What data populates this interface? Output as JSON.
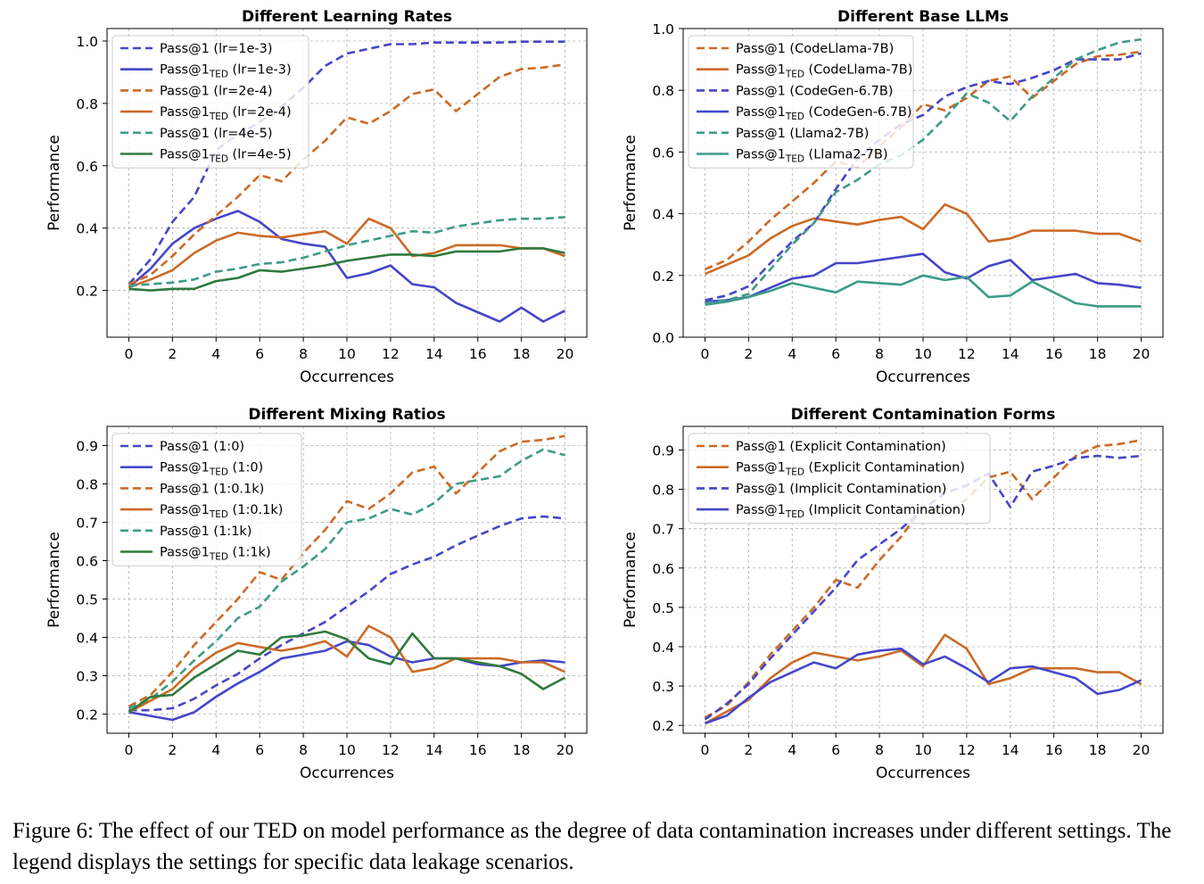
{
  "caption": "Figure 6: The effect of our TED on model performance as the degree of data contamination increases under different settings. The legend displays the settings for specific data leakage scenarios.",
  "colors": {
    "blue": "#4646c8",
    "orange": "#cc6a26",
    "teal": "#3e9b88",
    "green": "#2f7a3f"
  },
  "chart_data": [
    {
      "type": "line",
      "title": "Different Learning Rates",
      "xlabel": "Occurrences",
      "ylabel": "Performance",
      "xlim": [
        -1,
        21
      ],
      "ylim": [
        0.05,
        1.04
      ],
      "xticks": [
        0,
        2,
        4,
        6,
        8,
        10,
        12,
        14,
        16,
        18,
        20
      ],
      "yticks": [
        0.2,
        0.4,
        0.6,
        0.8,
        1.0
      ],
      "ytick_labels": [
        "0.2",
        "0.4",
        "0.6",
        "0.8",
        "1.0"
      ],
      "legend_loc": "top-left",
      "x": [
        0,
        1,
        2,
        3,
        4,
        5,
        6,
        7,
        8,
        9,
        10,
        11,
        12,
        13,
        14,
        15,
        16,
        17,
        18,
        19,
        20
      ],
      "series": [
        {
          "name": "Pass@1 (lr=1e-3)",
          "base": "Pass@1",
          "sub": "",
          "suffix": " (lr=1e-3)",
          "color": "blue",
          "dash": true,
          "values": [
            0.22,
            0.3,
            0.42,
            0.5,
            0.65,
            0.7,
            0.74,
            0.79,
            0.85,
            0.92,
            0.96,
            0.975,
            0.99,
            0.99,
            0.995,
            0.995,
            0.995,
            0.995,
            0.998,
            0.998,
            0.998
          ]
        },
        {
          "name": "Pass@1TED (lr=1e-3)",
          "base": "Pass@1",
          "sub": "TED",
          "suffix": " (lr=1e-3)",
          "color": "blue",
          "dash": false,
          "values": [
            0.21,
            0.27,
            0.35,
            0.4,
            0.43,
            0.455,
            0.42,
            0.365,
            0.35,
            0.34,
            0.24,
            0.255,
            0.28,
            0.22,
            0.21,
            0.16,
            0.13,
            0.1,
            0.145,
            0.1,
            0.135
          ]
        },
        {
          "name": "Pass@1 (lr=2e-4)",
          "base": "Pass@1",
          "sub": "",
          "suffix": " (lr=2e-4)",
          "color": "orange",
          "dash": true,
          "values": [
            0.22,
            0.25,
            0.31,
            0.38,
            0.44,
            0.5,
            0.57,
            0.55,
            0.62,
            0.68,
            0.755,
            0.735,
            0.775,
            0.83,
            0.845,
            0.775,
            0.83,
            0.885,
            0.91,
            0.915,
            0.925
          ]
        },
        {
          "name": "Pass@1TED (lr=2e-4)",
          "base": "Pass@1",
          "sub": "TED",
          "suffix": " (lr=2e-4)",
          "color": "orange",
          "dash": false,
          "values": [
            0.21,
            0.235,
            0.265,
            0.32,
            0.36,
            0.385,
            0.375,
            0.37,
            0.38,
            0.39,
            0.35,
            0.43,
            0.4,
            0.31,
            0.32,
            0.345,
            0.345,
            0.345,
            0.335,
            0.335,
            0.31
          ]
        },
        {
          "name": "Pass@1 (lr=4e-5)",
          "base": "Pass@1",
          "sub": "",
          "suffix": " (lr=4e-5)",
          "color": "teal",
          "dash": true,
          "values": [
            0.215,
            0.22,
            0.225,
            0.235,
            0.26,
            0.27,
            0.285,
            0.29,
            0.305,
            0.325,
            0.345,
            0.36,
            0.375,
            0.39,
            0.385,
            0.405,
            0.415,
            0.425,
            0.43,
            0.43,
            0.435
          ]
        },
        {
          "name": "Pass@1TED (lr=4e-5)",
          "base": "Pass@1",
          "sub": "TED",
          "suffix": " (lr=4e-5)",
          "color": "green",
          "dash": false,
          "values": [
            0.205,
            0.2,
            0.205,
            0.205,
            0.23,
            0.24,
            0.265,
            0.26,
            0.27,
            0.28,
            0.295,
            0.305,
            0.315,
            0.315,
            0.31,
            0.325,
            0.325,
            0.325,
            0.335,
            0.335,
            0.32
          ]
        }
      ]
    },
    {
      "type": "line",
      "title": "Different Base LLMs",
      "xlabel": "Occurrences",
      "ylabel": "Performance",
      "xlim": [
        -1,
        21
      ],
      "ylim": [
        0.0,
        1.0
      ],
      "xticks": [
        0,
        2,
        4,
        6,
        8,
        10,
        12,
        14,
        16,
        18,
        20
      ],
      "yticks": [
        0.0,
        0.2,
        0.4,
        0.6,
        0.8,
        1.0
      ],
      "ytick_labels": [
        "0.0",
        "0.2",
        "0.4",
        "0.6",
        "0.8",
        "1.0"
      ],
      "legend_loc": "top-left",
      "x": [
        0,
        1,
        2,
        3,
        4,
        5,
        6,
        7,
        8,
        9,
        10,
        11,
        12,
        13,
        14,
        15,
        16,
        17,
        18,
        19,
        20
      ],
      "series": [
        {
          "name": "Pass@1 (CodeLlama-7B)",
          "base": "Pass@1",
          "sub": "",
          "suffix": " (CodeLlama-7B)",
          "color": "orange",
          "dash": true,
          "values": [
            0.22,
            0.25,
            0.31,
            0.38,
            0.44,
            0.5,
            0.57,
            0.55,
            0.62,
            0.68,
            0.755,
            0.735,
            0.775,
            0.83,
            0.845,
            0.775,
            0.83,
            0.885,
            0.91,
            0.915,
            0.925
          ]
        },
        {
          "name": "Pass@1TED (CodeLlama-7B)",
          "base": "Pass@1",
          "sub": "TED",
          "suffix": " (CodeLlama-7B)",
          "color": "orange",
          "dash": false,
          "values": [
            0.205,
            0.235,
            0.265,
            0.32,
            0.36,
            0.385,
            0.375,
            0.365,
            0.38,
            0.39,
            0.35,
            0.43,
            0.4,
            0.31,
            0.32,
            0.345,
            0.345,
            0.345,
            0.335,
            0.335,
            0.31
          ]
        },
        {
          "name": "Pass@1 (CodeGen-6.7B)",
          "base": "Pass@1",
          "sub": "",
          "suffix": " (CodeGen-6.7B)",
          "color": "blue",
          "dash": true,
          "values": [
            0.12,
            0.135,
            0.165,
            0.24,
            0.31,
            0.37,
            0.48,
            0.58,
            0.64,
            0.69,
            0.72,
            0.78,
            0.81,
            0.83,
            0.82,
            0.84,
            0.865,
            0.9,
            0.9,
            0.9,
            0.92
          ]
        },
        {
          "name": "Pass@1TED (CodeGen-6.7B)",
          "base": "Pass@1",
          "sub": "TED",
          "suffix": " (CodeGen-6.7B)",
          "color": "blue",
          "dash": false,
          "values": [
            0.115,
            0.12,
            0.13,
            0.16,
            0.19,
            0.2,
            0.24,
            0.24,
            0.25,
            0.26,
            0.27,
            0.21,
            0.19,
            0.23,
            0.25,
            0.185,
            0.195,
            0.205,
            0.175,
            0.17,
            0.16
          ]
        },
        {
          "name": "Pass@1 (Llama2-7B)",
          "base": "Pass@1",
          "sub": "",
          "suffix": " (Llama2-7B)",
          "color": "teal",
          "dash": true,
          "values": [
            0.11,
            0.12,
            0.14,
            0.22,
            0.3,
            0.37,
            0.47,
            0.51,
            0.56,
            0.59,
            0.64,
            0.71,
            0.79,
            0.76,
            0.7,
            0.78,
            0.84,
            0.9,
            0.93,
            0.955,
            0.965
          ]
        },
        {
          "name": "Pass@1TED (Llama2-7B)",
          "base": "Pass@1",
          "sub": "TED",
          "suffix": " (Llama2-7B)",
          "color": "teal",
          "dash": false,
          "values": [
            0.105,
            0.115,
            0.13,
            0.15,
            0.175,
            0.16,
            0.145,
            0.18,
            0.175,
            0.17,
            0.2,
            0.185,
            0.195,
            0.13,
            0.135,
            0.18,
            0.145,
            0.11,
            0.1,
            0.1,
            0.1
          ]
        }
      ]
    },
    {
      "type": "line",
      "title": "Different Mixing Ratios",
      "xlabel": "Occurrences",
      "ylabel": "Performance",
      "xlim": [
        -1,
        21
      ],
      "ylim": [
        0.15,
        0.95
      ],
      "xticks": [
        0,
        2,
        4,
        6,
        8,
        10,
        12,
        14,
        16,
        18,
        20
      ],
      "yticks": [
        0.2,
        0.3,
        0.4,
        0.5,
        0.6,
        0.7,
        0.8,
        0.9
      ],
      "ytick_labels": [
        "0.2",
        "0.3",
        "0.4",
        "0.5",
        "0.6",
        "0.7",
        "0.8",
        "0.9"
      ],
      "legend_loc": "top-left",
      "x": [
        0,
        1,
        2,
        3,
        4,
        5,
        6,
        7,
        8,
        9,
        10,
        11,
        12,
        13,
        14,
        15,
        16,
        17,
        18,
        19,
        20
      ],
      "series": [
        {
          "name": "Pass@1 (1:0)",
          "base": "Pass@1",
          "sub": "",
          "suffix": " (1:0)",
          "color": "blue",
          "dash": true,
          "values": [
            0.21,
            0.21,
            0.215,
            0.24,
            0.275,
            0.305,
            0.345,
            0.38,
            0.41,
            0.44,
            0.48,
            0.52,
            0.565,
            0.59,
            0.61,
            0.64,
            0.665,
            0.69,
            0.71,
            0.715,
            0.71
          ]
        },
        {
          "name": "Pass@1TED (1:0)",
          "base": "Pass@1",
          "sub": "TED",
          "suffix": " (1:0)",
          "color": "blue",
          "dash": false,
          "values": [
            0.205,
            0.195,
            0.185,
            0.205,
            0.245,
            0.28,
            0.31,
            0.345,
            0.355,
            0.365,
            0.39,
            0.38,
            0.35,
            0.335,
            0.345,
            0.345,
            0.33,
            0.325,
            0.335,
            0.34,
            0.335
          ]
        },
        {
          "name": "Pass@1 (1:0.1k)",
          "base": "Pass@1",
          "sub": "",
          "suffix": " (1:0.1k)",
          "color": "orange",
          "dash": true,
          "values": [
            0.22,
            0.25,
            0.31,
            0.38,
            0.44,
            0.5,
            0.57,
            0.55,
            0.62,
            0.68,
            0.755,
            0.735,
            0.775,
            0.83,
            0.845,
            0.775,
            0.83,
            0.885,
            0.91,
            0.915,
            0.925
          ]
        },
        {
          "name": "Pass@1TED (1:0.1k)",
          "base": "Pass@1",
          "sub": "TED",
          "suffix": " (1:0.1k)",
          "color": "orange",
          "dash": false,
          "values": [
            0.205,
            0.235,
            0.265,
            0.32,
            0.36,
            0.385,
            0.375,
            0.365,
            0.375,
            0.39,
            0.35,
            0.43,
            0.4,
            0.31,
            0.32,
            0.345,
            0.345,
            0.345,
            0.335,
            0.335,
            0.31
          ]
        },
        {
          "name": "Pass@1 (1:1k)",
          "base": "Pass@1",
          "sub": "",
          "suffix": " (1:1k)",
          "color": "teal",
          "dash": true,
          "values": [
            0.215,
            0.24,
            0.285,
            0.34,
            0.39,
            0.45,
            0.48,
            0.545,
            0.585,
            0.63,
            0.7,
            0.71,
            0.735,
            0.72,
            0.75,
            0.8,
            0.81,
            0.82,
            0.86,
            0.89,
            0.875
          ]
        },
        {
          "name": "Pass@1TED (1:1k)",
          "base": "Pass@1",
          "sub": "TED",
          "suffix": " (1:1k)",
          "color": "green",
          "dash": false,
          "values": [
            0.205,
            0.245,
            0.25,
            0.295,
            0.33,
            0.365,
            0.355,
            0.4,
            0.405,
            0.415,
            0.395,
            0.345,
            0.33,
            0.41,
            0.345,
            0.345,
            0.335,
            0.325,
            0.305,
            0.265,
            0.295
          ]
        }
      ]
    },
    {
      "type": "line",
      "title": "Different Contamination Forms",
      "xlabel": "Occurrences",
      "ylabel": "Performance",
      "xlim": [
        -1,
        21
      ],
      "ylim": [
        0.18,
        0.96
      ],
      "xticks": [
        0,
        2,
        4,
        6,
        8,
        10,
        12,
        14,
        16,
        18,
        20
      ],
      "yticks": [
        0.2,
        0.3,
        0.4,
        0.5,
        0.6,
        0.7,
        0.8,
        0.9
      ],
      "ytick_labels": [
        "0.2",
        "0.3",
        "0.4",
        "0.5",
        "0.6",
        "0.7",
        "0.8",
        "0.9"
      ],
      "legend_loc": "top-left",
      "x": [
        0,
        1,
        2,
        3,
        4,
        5,
        6,
        7,
        8,
        9,
        10,
        11,
        12,
        13,
        14,
        15,
        16,
        17,
        18,
        19,
        20
      ],
      "series": [
        {
          "name": "Pass@1 (Explicit Contamination)",
          "base": "Pass@1",
          "sub": "",
          "suffix": " (Explicit Contamination)",
          "color": "orange",
          "dash": true,
          "values": [
            0.22,
            0.25,
            0.31,
            0.38,
            0.44,
            0.5,
            0.57,
            0.55,
            0.62,
            0.68,
            0.755,
            0.735,
            0.775,
            0.83,
            0.845,
            0.775,
            0.83,
            0.885,
            0.91,
            0.915,
            0.925
          ]
        },
        {
          "name": "Pass@1TED (Explicit Contamination)",
          "base": "Pass@1",
          "sub": "TED",
          "suffix": " (Explicit Contamination)",
          "color": "orange",
          "dash": false,
          "values": [
            0.205,
            0.235,
            0.265,
            0.32,
            0.36,
            0.385,
            0.375,
            0.365,
            0.375,
            0.39,
            0.35,
            0.43,
            0.395,
            0.305,
            0.32,
            0.345,
            0.345,
            0.345,
            0.335,
            0.335,
            0.305
          ]
        },
        {
          "name": "Pass@1 (Implicit Contamination)",
          "base": "Pass@1",
          "sub": "",
          "suffix": " (Implicit Contamination)",
          "color": "blue",
          "dash": true,
          "values": [
            0.215,
            0.255,
            0.305,
            0.37,
            0.43,
            0.49,
            0.55,
            0.62,
            0.66,
            0.7,
            0.75,
            0.79,
            0.81,
            0.84,
            0.755,
            0.845,
            0.86,
            0.88,
            0.885,
            0.88,
            0.885
          ]
        },
        {
          "name": "Pass@1TED (Implicit Contamination)",
          "base": "Pass@1",
          "sub": "TED",
          "suffix": " (Implicit Contamination)",
          "color": "blue",
          "dash": false,
          "values": [
            0.205,
            0.225,
            0.27,
            0.31,
            0.335,
            0.36,
            0.345,
            0.38,
            0.39,
            0.395,
            0.355,
            0.375,
            0.345,
            0.31,
            0.345,
            0.35,
            0.335,
            0.32,
            0.28,
            0.29,
            0.315
          ]
        }
      ]
    }
  ]
}
